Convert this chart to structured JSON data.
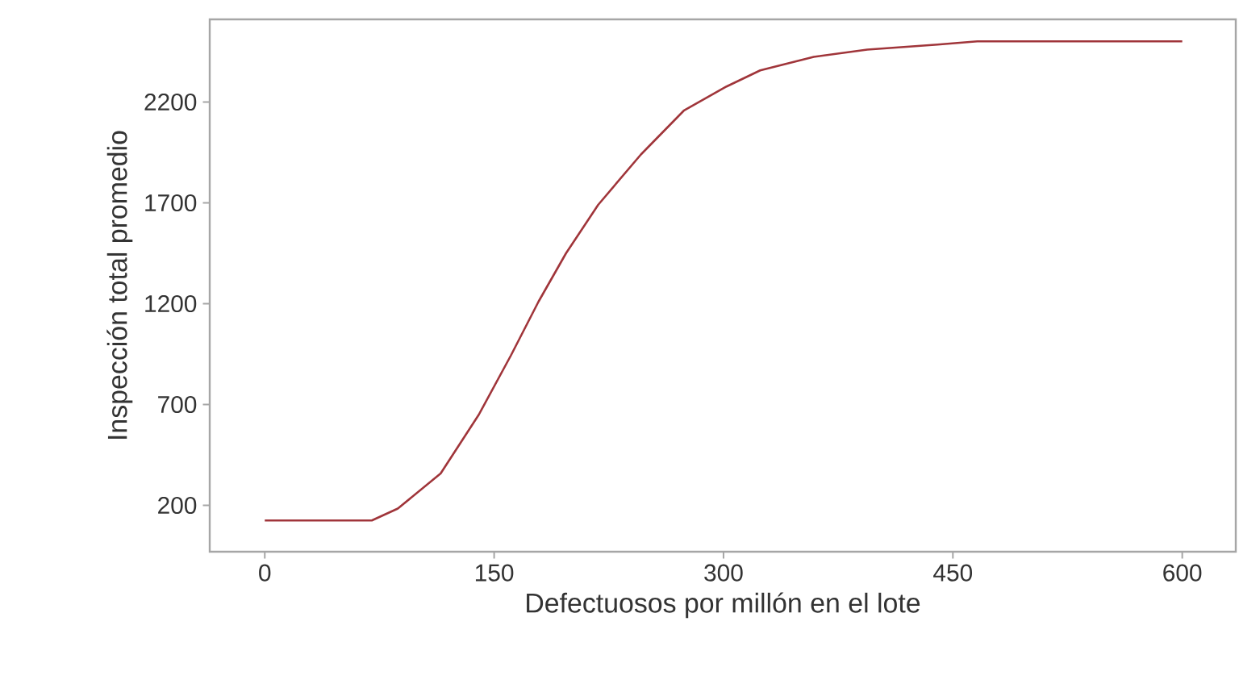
{
  "chart_data": {
    "type": "line",
    "xlabel": "Defectuosos por millón en el lote",
    "ylabel": "Inspección total promedio",
    "x": [
      0,
      70,
      87,
      115,
      140,
      161,
      179,
      197,
      218,
      246,
      274,
      302,
      324,
      359,
      394,
      440,
      466,
      600
    ],
    "values": [
      125,
      125,
      184,
      358,
      650,
      944,
      1210,
      1450,
      1690,
      1940,
      2157,
      2277,
      2357,
      2424,
      2460,
      2485,
      2501,
      2501
    ],
    "color": "#a0353a",
    "xlim": [
      -36,
      635
    ],
    "ylim": [
      -30,
      2610
    ],
    "xticks": [
      0,
      150,
      300,
      450,
      600
    ],
    "yticks": [
      200,
      700,
      1200,
      1700,
      2200
    ]
  }
}
